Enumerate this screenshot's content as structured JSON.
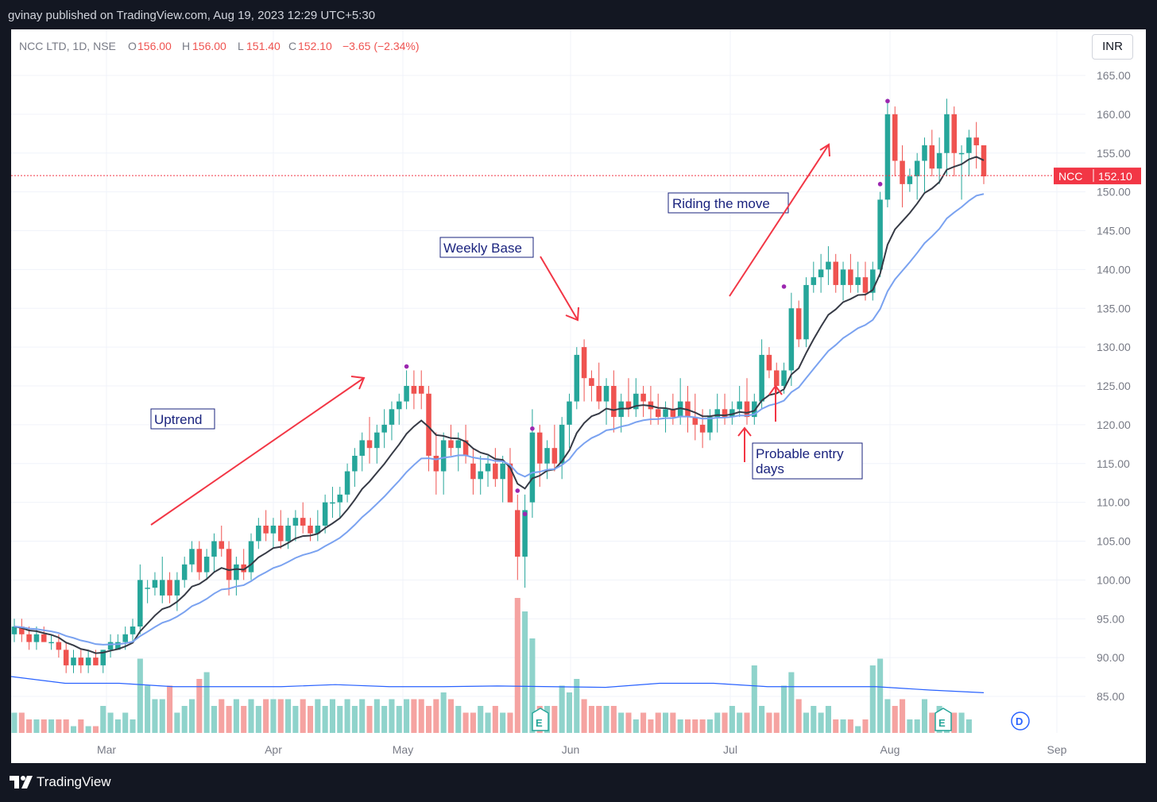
{
  "header": {
    "published_by": "gvinay published on TradingView.com, Aug 19, 2023 12:29 UTC+5:30"
  },
  "legend": {
    "symbol": "NCC LTD, 1D, NSE",
    "o_label": "O",
    "o_value": "156.00",
    "h_label": "H",
    "h_value": "156.00",
    "l_label": "L",
    "l_value": "151.40",
    "c_label": "C",
    "c_value": "152.10",
    "change": "−3.65 (−2.34%)"
  },
  "currency": "INR",
  "price_label": {
    "ticker": "NCC",
    "value": "152.10"
  },
  "footer": {
    "brand": "TradingView"
  },
  "colors": {
    "up": "#26a69a",
    "down": "#ef5350",
    "vol_up": "#8fd3cb",
    "vol_down": "#f5a3a1",
    "ema_fast": "#363a45",
    "ema_slow": "#7aa2f0",
    "vol_ma": "#2962ff",
    "annotation_text": "#1a237e",
    "arrow": "#f23645"
  },
  "chart_data": {
    "type": "candlestick",
    "y_axis": {
      "ticks": [
        "85.00",
        "90.00",
        "95.00",
        "100.00",
        "105.00",
        "110.00",
        "115.00",
        "120.00",
        "125.00",
        "130.00",
        "135.00",
        "140.00",
        "145.00",
        "150.00",
        "155.00",
        "160.00",
        "165.00"
      ],
      "range": [
        82,
        168
      ]
    },
    "x_axis": {
      "ticks": [
        "Mar",
        "Apr",
        "May",
        "Jun",
        "Jul",
        "Aug",
        "Sep"
      ]
    },
    "last_price": 152.1,
    "series": [
      {
        "name": "candles",
        "points": [
          [
            93,
            95,
            92,
            94
          ],
          [
            94,
            95,
            92,
            93
          ],
          [
            93,
            94,
            91,
            92
          ],
          [
            92,
            94,
            91,
            93
          ],
          [
            93,
            94,
            92,
            92
          ],
          [
            92,
            93,
            91,
            92
          ],
          [
            92,
            93,
            90,
            91
          ],
          [
            91,
            92,
            88,
            89
          ],
          [
            89,
            91,
            88,
            90
          ],
          [
            90,
            91,
            88,
            89
          ],
          [
            89,
            91,
            88,
            90
          ],
          [
            90,
            91,
            89,
            89
          ],
          [
            89,
            91,
            88,
            91
          ],
          [
            91,
            93,
            90,
            92
          ],
          [
            91,
            93,
            91,
            92
          ],
          [
            92,
            94,
            91,
            93
          ],
          [
            93,
            95,
            92,
            94
          ],
          [
            94,
            102,
            93,
            100
          ],
          [
            99,
            100,
            97,
            99
          ],
          [
            99,
            101,
            98,
            100
          ],
          [
            98,
            103,
            97,
            100
          ],
          [
            100,
            101,
            97,
            98
          ],
          [
            98,
            101,
            96,
            100
          ],
          [
            100,
            103,
            99,
            102
          ],
          [
            102,
            105,
            101,
            104
          ],
          [
            104,
            105,
            100,
            101
          ],
          [
            101,
            104,
            100,
            103
          ],
          [
            103,
            106,
            101,
            105
          ],
          [
            105,
            107,
            103,
            104
          ],
          [
            104,
            105,
            98,
            100
          ],
          [
            100,
            103,
            98,
            102
          ],
          [
            102,
            104,
            100,
            101
          ],
          [
            101,
            106,
            100,
            105
          ],
          [
            105,
            108,
            104,
            107
          ],
          [
            107,
            109,
            105,
            106
          ],
          [
            106,
            108,
            104,
            107
          ],
          [
            107,
            109,
            104,
            105
          ],
          [
            105,
            108,
            104,
            107
          ],
          [
            107,
            109,
            105,
            108
          ],
          [
            108,
            110,
            106,
            107
          ],
          [
            107,
            108,
            105,
            106
          ],
          [
            106,
            109,
            105,
            107
          ],
          [
            107,
            111,
            106,
            110
          ],
          [
            110,
            112,
            108,
            110
          ],
          [
            110,
            112,
            108,
            111
          ],
          [
            111,
            115,
            110,
            114
          ],
          [
            114,
            117,
            112,
            116
          ],
          [
            116,
            119,
            114,
            118
          ],
          [
            118,
            121,
            115,
            117
          ],
          [
            117,
            120,
            115,
            119
          ],
          [
            119,
            122,
            117,
            120
          ],
          [
            120,
            123,
            118,
            122
          ],
          [
            122,
            124,
            120,
            123
          ],
          [
            123,
            127,
            122,
            125
          ],
          [
            125,
            127,
            122,
            124
          ],
          [
            125,
            127,
            122,
            124
          ],
          [
            124,
            125,
            114,
            116
          ],
          [
            116,
            119,
            111,
            114
          ],
          [
            114,
            119,
            111,
            118
          ],
          [
            118,
            120,
            116,
            117
          ],
          [
            117,
            119,
            114,
            118
          ],
          [
            118,
            120,
            115,
            116
          ],
          [
            115,
            117,
            111,
            113
          ],
          [
            113,
            116,
            111,
            114
          ],
          [
            114,
            116,
            112,
            115
          ],
          [
            115,
            117,
            112,
            113
          ],
          [
            113,
            116,
            110,
            115
          ],
          [
            115,
            117,
            110,
            110
          ],
          [
            109,
            111,
            100,
            103
          ],
          [
            103,
            111,
            99,
            109
          ],
          [
            110,
            122,
            108,
            119
          ],
          [
            119,
            120,
            112,
            115
          ],
          [
            115,
            118,
            113,
            117
          ],
          [
            117,
            120,
            114,
            115
          ],
          [
            115,
            121,
            113,
            120
          ],
          [
            120,
            124,
            117,
            123
          ],
          [
            123,
            130,
            122,
            129
          ],
          [
            130,
            131,
            123,
            126
          ],
          [
            126,
            127,
            123,
            125
          ],
          [
            125,
            128,
            122,
            123
          ],
          [
            123,
            126,
            120,
            125
          ],
          [
            125,
            127,
            119,
            121
          ],
          [
            121,
            124,
            119,
            123
          ],
          [
            123,
            126,
            121,
            122
          ],
          [
            122,
            126,
            121,
            124
          ],
          [
            124,
            125,
            121,
            123
          ],
          [
            123,
            125,
            120,
            122
          ],
          [
            122,
            124,
            120,
            121
          ],
          [
            121,
            123,
            119,
            122
          ],
          [
            122,
            124,
            120,
            121
          ],
          [
            121,
            126,
            120,
            123
          ],
          [
            123,
            125,
            119,
            121
          ],
          [
            121,
            124,
            118,
            120
          ],
          [
            120,
            122,
            117,
            119
          ],
          [
            119,
            122,
            118,
            121
          ],
          [
            121,
            124,
            119,
            122
          ],
          [
            122,
            124,
            120,
            121
          ],
          [
            121,
            123,
            120,
            122
          ],
          [
            122,
            125,
            121,
            123
          ],
          [
            123,
            126,
            120,
            121
          ],
          [
            121,
            124,
            120,
            123
          ],
          [
            123,
            131,
            122,
            129
          ],
          [
            129,
            130,
            126,
            127
          ],
          [
            127,
            128,
            124,
            125
          ],
          [
            125,
            128,
            124,
            127
          ],
          [
            127,
            137,
            125,
            135
          ],
          [
            135,
            136,
            130,
            131
          ],
          [
            131,
            139,
            130,
            138
          ],
          [
            138,
            141,
            137,
            139
          ],
          [
            139,
            142,
            137,
            140
          ],
          [
            140,
            143,
            138,
            141
          ],
          [
            141,
            142,
            137,
            138
          ],
          [
            138,
            141,
            136,
            140
          ],
          [
            140,
            142,
            137,
            138
          ],
          [
            138,
            141,
            137,
            139
          ],
          [
            139,
            141,
            136,
            137
          ],
          [
            137,
            141,
            136,
            140
          ],
          [
            140,
            150,
            139,
            149
          ],
          [
            149,
            162,
            148,
            160
          ],
          [
            160,
            161,
            152,
            154
          ],
          [
            154,
            156,
            148,
            151
          ],
          [
            151,
            153,
            150,
            152
          ],
          [
            152,
            155,
            149,
            154
          ],
          [
            154,
            157,
            150,
            156
          ],
          [
            156,
            158,
            152,
            153
          ],
          [
            153,
            157,
            151,
            155
          ],
          [
            155,
            162,
            152,
            160
          ],
          [
            160,
            161,
            152,
            155
          ],
          [
            155,
            156,
            149,
            155
          ],
          [
            155,
            158,
            152,
            157
          ],
          [
            157,
            159,
            153,
            156
          ],
          [
            156,
            156,
            151,
            152
          ]
        ]
      },
      {
        "name": "volume",
        "values": [
          3,
          3,
          2,
          2,
          2,
          2,
          2,
          2,
          1,
          2,
          1,
          1,
          4,
          3,
          2,
          3,
          2,
          11,
          7,
          5,
          5,
          7,
          3,
          4,
          5,
          8,
          9,
          4,
          5,
          4,
          5,
          4,
          5,
          4,
          5,
          5,
          5,
          5,
          4,
          5,
          4,
          5,
          4,
          5,
          4,
          5,
          4,
          5,
          4,
          5,
          4,
          5,
          4,
          5,
          5,
          5,
          4,
          5,
          6,
          5,
          4,
          3,
          3,
          4,
          3,
          4,
          3,
          3,
          20,
          18,
          14,
          4,
          4,
          4,
          7,
          6,
          8,
          5,
          4,
          4,
          4,
          4,
          3,
          3,
          2,
          3,
          2,
          3,
          3,
          3,
          2,
          2,
          2,
          2,
          2,
          3,
          3,
          4,
          3,
          3,
          10,
          4,
          3,
          3,
          7,
          9,
          5,
          3,
          4,
          3,
          4,
          2,
          2,
          2,
          1,
          2,
          10,
          11,
          5,
          4,
          5,
          2,
          2,
          5,
          3,
          4,
          3,
          3,
          3,
          2
        ]
      },
      {
        "name": "vol_ma",
        "values": [
          6,
          5,
          5,
          4.5,
          4.5,
          4.5,
          4.8,
          4.5,
          4.5,
          4.6,
          4.5,
          4.4,
          5,
          5,
          4.5,
          4.5,
          4.5,
          4,
          3.6
        ]
      }
    ],
    "annotations": [
      "Uptrend",
      "Weekly Base",
      "Riding the move",
      "Probable entry days"
    ]
  }
}
